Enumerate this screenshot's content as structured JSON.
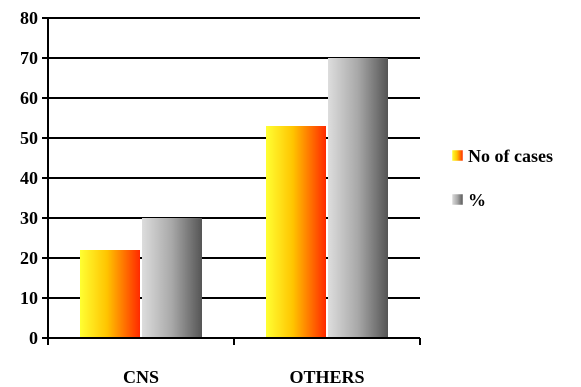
{
  "chart_data": {
    "type": "bar",
    "categories": [
      "CNS",
      "OTHERS"
    ],
    "series": [
      {
        "name": "No of cases",
        "values": [
          22,
          53
        ],
        "color": "#ff5a00"
      },
      {
        "name": "%",
        "values": [
          30,
          70
        ],
        "color": "#8a8a8a"
      }
    ],
    "ylim": [
      0,
      80
    ],
    "yticks": [
      "0",
      "10",
      "20",
      "30",
      "40",
      "50",
      "60",
      "70",
      "80"
    ],
    "grid": true,
    "legend_position": "right",
    "title": "",
    "xlabel": "",
    "ylabel": ""
  }
}
